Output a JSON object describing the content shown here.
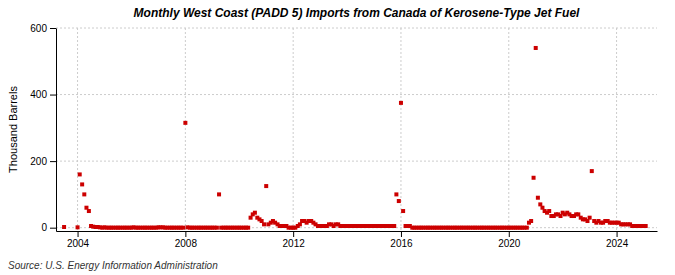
{
  "chart_data": {
    "type": "scatter",
    "title": "Monthly West Coast (PADD 5) Imports from Canada of Kerosene-Type Jet Fuel",
    "ylabel": "Thousand Barrels",
    "source": "Source: U.S. Energy Information Administration",
    "color": "#cc0000",
    "marker": "square",
    "grid": true,
    "xlim": [
      2003.2,
      2025.5
    ],
    "xticks": [
      2004,
      2008,
      2012,
      2016,
      2020,
      2024
    ],
    "ylim": [
      -10,
      600
    ],
    "yticks": [
      0,
      200,
      400,
      600
    ],
    "x": [
      2003.5,
      2004.0,
      2004.08,
      2004.17,
      2004.25,
      2004.33,
      2004.42,
      2004.5,
      2004.58,
      2004.67,
      2004.75,
      2004.83,
      2004.92,
      2005.0,
      2005.08,
      2005.17,
      2005.25,
      2005.33,
      2005.42,
      2005.5,
      2005.58,
      2005.67,
      2005.75,
      2005.83,
      2005.92,
      2006.0,
      2006.08,
      2006.17,
      2006.25,
      2006.33,
      2006.42,
      2006.5,
      2006.58,
      2006.67,
      2006.75,
      2006.83,
      2006.92,
      2007.0,
      2007.08,
      2007.17,
      2007.25,
      2007.33,
      2007.42,
      2007.5,
      2007.58,
      2007.67,
      2007.75,
      2007.83,
      2007.92,
      2008.0,
      2008.08,
      2008.17,
      2008.25,
      2008.33,
      2008.42,
      2008.5,
      2008.58,
      2008.67,
      2008.75,
      2008.83,
      2008.92,
      2009.0,
      2009.08,
      2009.17,
      2009.25,
      2009.33,
      2009.42,
      2009.5,
      2009.58,
      2009.67,
      2009.75,
      2009.83,
      2009.92,
      2010.0,
      2010.08,
      2010.17,
      2010.25,
      2010.33,
      2010.42,
      2010.5,
      2010.58,
      2010.67,
      2010.75,
      2010.83,
      2010.92,
      2011.0,
      2011.08,
      2011.17,
      2011.25,
      2011.33,
      2011.42,
      2011.5,
      2011.58,
      2011.67,
      2011.75,
      2011.83,
      2011.92,
      2012.0,
      2012.08,
      2012.17,
      2012.25,
      2012.33,
      2012.42,
      2012.5,
      2012.58,
      2012.67,
      2012.75,
      2012.83,
      2012.92,
      2013.0,
      2013.08,
      2013.17,
      2013.25,
      2013.33,
      2013.42,
      2013.5,
      2013.58,
      2013.67,
      2013.75,
      2013.83,
      2013.92,
      2014.0,
      2014.08,
      2014.17,
      2014.25,
      2014.33,
      2014.42,
      2014.5,
      2014.58,
      2014.67,
      2014.75,
      2014.83,
      2014.92,
      2015.0,
      2015.08,
      2015.17,
      2015.25,
      2015.33,
      2015.42,
      2015.5,
      2015.58,
      2015.67,
      2015.75,
      2015.83,
      2015.92,
      2016.0,
      2016.08,
      2016.17,
      2016.25,
      2016.33,
      2016.42,
      2016.5,
      2016.58,
      2016.67,
      2016.75,
      2016.83,
      2016.92,
      2017.0,
      2017.08,
      2017.17,
      2017.25,
      2017.33,
      2017.42,
      2017.5,
      2017.58,
      2017.67,
      2017.75,
      2017.83,
      2017.92,
      2018.0,
      2018.08,
      2018.17,
      2018.25,
      2018.33,
      2018.42,
      2018.5,
      2018.58,
      2018.67,
      2018.75,
      2018.83,
      2018.92,
      2019.0,
      2019.08,
      2019.17,
      2019.25,
      2019.33,
      2019.42,
      2019.5,
      2019.58,
      2019.67,
      2019.75,
      2019.83,
      2019.92,
      2020.0,
      2020.08,
      2020.17,
      2020.25,
      2020.33,
      2020.42,
      2020.5,
      2020.58,
      2020.67,
      2020.75,
      2020.83,
      2020.92,
      2021.0,
      2021.08,
      2021.17,
      2021.25,
      2021.33,
      2021.42,
      2021.5,
      2021.58,
      2021.67,
      2021.75,
      2021.83,
      2021.92,
      2022.0,
      2022.08,
      2022.17,
      2022.25,
      2022.33,
      2022.42,
      2022.5,
      2022.58,
      2022.67,
      2022.75,
      2022.83,
      2022.92,
      2023.0,
      2023.08,
      2023.17,
      2023.25,
      2023.33,
      2023.42,
      2023.5,
      2023.58,
      2023.67,
      2023.75,
      2023.83,
      2023.92,
      2024.0,
      2024.08,
      2024.17,
      2024.25,
      2024.33,
      2024.42,
      2024.5,
      2024.58,
      2024.67,
      2024.75,
      2024.83,
      2024.92,
      2025.0,
      2025.08
    ],
    "values": [
      2,
      1,
      160,
      130,
      100,
      60,
      50,
      5,
      3,
      2,
      2,
      1,
      0,
      1,
      0,
      0,
      0,
      0,
      0,
      0,
      0,
      0,
      0,
      0,
      0,
      0,
      1,
      0,
      0,
      0,
      0,
      0,
      0,
      0,
      0,
      0,
      0,
      1,
      1,
      1,
      0,
      0,
      0,
      0,
      0,
      0,
      0,
      0,
      0,
      315,
      1,
      0,
      0,
      0,
      0,
      0,
      0,
      0,
      0,
      0,
      0,
      0,
      0,
      0,
      100,
      0,
      0,
      0,
      0,
      0,
      0,
      0,
      0,
      0,
      0,
      0,
      0,
      0,
      30,
      40,
      45,
      30,
      25,
      20,
      10,
      125,
      10,
      15,
      20,
      15,
      10,
      5,
      5,
      5,
      5,
      0,
      0,
      0,
      0,
      5,
      10,
      20,
      20,
      15,
      20,
      20,
      15,
      10,
      5,
      5,
      5,
      5,
      5,
      10,
      10,
      5,
      10,
      10,
      5,
      5,
      5,
      5,
      5,
      5,
      5,
      5,
      5,
      5,
      5,
      5,
      5,
      5,
      5,
      5,
      5,
      5,
      5,
      5,
      5,
      5,
      5,
      5,
      5,
      100,
      80,
      375,
      50,
      5,
      5,
      5,
      0,
      0,
      0,
      0,
      0,
      0,
      0,
      0,
      0,
      0,
      0,
      0,
      0,
      0,
      0,
      0,
      0,
      0,
      0,
      0,
      0,
      0,
      0,
      0,
      0,
      0,
      0,
      0,
      0,
      0,
      0,
      0,
      0,
      0,
      0,
      0,
      0,
      0,
      0,
      0,
      0,
      0,
      0,
      0,
      0,
      0,
      0,
      0,
      0,
      0,
      0,
      0,
      15,
      20,
      150,
      540,
      90,
      70,
      60,
      50,
      45,
      50,
      35,
      35,
      40,
      40,
      35,
      45,
      40,
      45,
      40,
      35,
      35,
      40,
      40,
      30,
      25,
      25,
      20,
      30,
      170,
      20,
      15,
      20,
      15,
      15,
      20,
      20,
      15,
      15,
      15,
      15,
      15,
      10,
      10,
      10,
      10,
      10,
      5,
      5,
      5,
      5,
      5,
      5,
      5
    ]
  }
}
